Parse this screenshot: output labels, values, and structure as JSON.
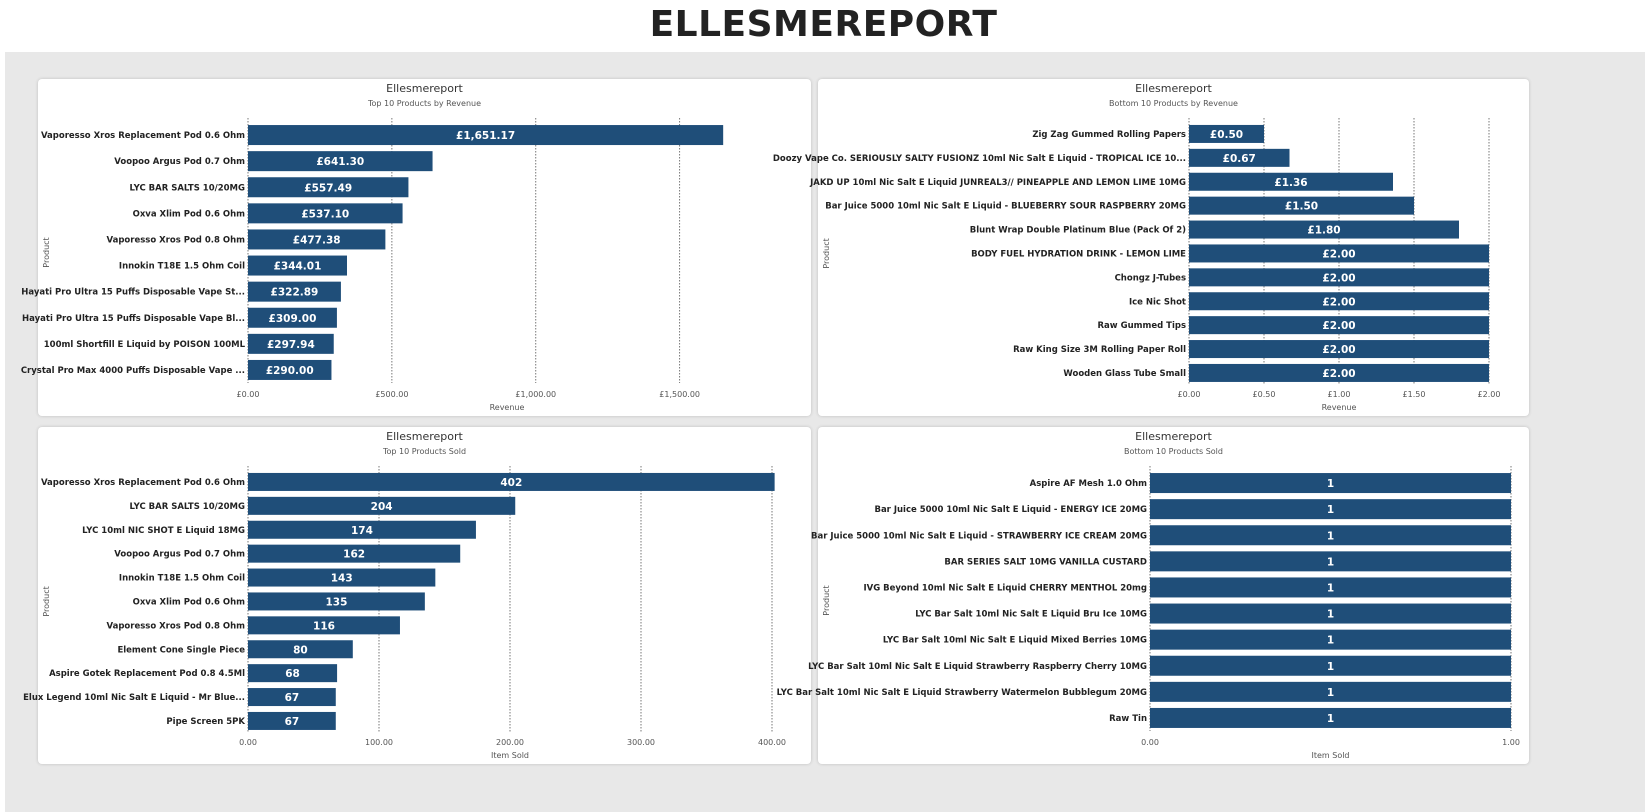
{
  "page": {
    "title": "ELLESMEREPORT"
  },
  "colors": {
    "bar": "#1f4e79",
    "bar_label": "#ffffff",
    "grid": "#555555",
    "axis_text": "#555555",
    "category_text": "#222222"
  },
  "chart_data": [
    {
      "type": "bar",
      "orientation": "horizontal",
      "title": "Ellesmereport",
      "subtitle": "Top 10 Products by Revenue",
      "xlabel": "Revenue",
      "ylabel": "Product",
      "xlim": [
        0,
        1800
      ],
      "ticks": [
        0,
        500,
        1000,
        1500
      ],
      "tick_labels": [
        "£0.00",
        "£500.00",
        "£1,000.00",
        "£1,500.00"
      ],
      "grid": true,
      "categories": [
        "Vaporesso Xros Replacement Pod 0.6 Ohm",
        "Voopoo Argus Pod 0.7 Ohm",
        "LYC BAR SALTS 10/20MG",
        "Oxva Xlim Pod 0.6 Ohm",
        "Vaporesso Xros Pod 0.8 Ohm",
        "Innokin T18E 1.5 Ohm Coil",
        "Hayati Pro Ultra 15 Puffs Disposable Vape  St...",
        "Hayati Pro Ultra 15 Puffs Disposable Vape  Bl...",
        "100ml Shortfill E Liquid by POISON 100ML",
        "Crystal Pro Max 4000 Puffs Disposable Vape ..."
      ],
      "values": [
        1651.17,
        641.3,
        557.49,
        537.1,
        477.38,
        344.01,
        322.89,
        309.0,
        297.94,
        290.0
      ],
      "value_labels": [
        "£1,651.17",
        "£641.30",
        "£557.49",
        "£537.10",
        "£477.38",
        "£344.01",
        "£322.89",
        "£309.00",
        "£297.94",
        "£290.00"
      ]
    },
    {
      "type": "bar",
      "orientation": "horizontal",
      "title": "Ellesmereport",
      "subtitle": "Bottom 10 Products by Revenue",
      "xlabel": "Revenue",
      "ylabel": "Product",
      "xlim": [
        0,
        2.0
      ],
      "ticks": [
        0,
        0.5,
        1.0,
        1.5,
        2.0
      ],
      "tick_labels": [
        "£0.00",
        "£0.50",
        "£1.00",
        "£1.50",
        "£2.00"
      ],
      "grid": true,
      "categories": [
        "Zig Zag Gummed Rolling Papers",
        "Doozy Vape Co. SERIOUSLY SALTY FUSIONZ 10ml Nic Salt E Liquid - TROPICAL ICE 10...",
        "JAKD UP 10ml Nic Salt E Liquid JUNREAL3// PINEAPPLE AND LEMON LIME 10MG",
        "Bar Juice 5000 10ml Nic Salt E Liquid - BLUEBERRY SOUR RASPBERRY 20MG",
        "Blunt Wrap Double Platinum Blue (Pack Of 2)",
        "BODY FUEL HYDRATION DRINK - LEMON LIME",
        "Chongz J-Tubes",
        "Ice Nic Shot",
        "Raw Gummed Tips",
        "Raw King Size 3M Rolling Paper Roll",
        "Wooden Glass Tube Small"
      ],
      "values": [
        0.5,
        0.67,
        1.36,
        1.5,
        1.8,
        2.0,
        2.0,
        2.0,
        2.0,
        2.0,
        2.0
      ],
      "value_labels": [
        "£0.50",
        "£0.67",
        "£1.36",
        "£1.50",
        "£1.80",
        "£2.00",
        "£2.00",
        "£2.00",
        "£2.00",
        "£2.00",
        "£2.00"
      ]
    },
    {
      "type": "bar",
      "orientation": "horizontal",
      "title": "Ellesmereport",
      "subtitle": "Top 10 Products Sold",
      "xlabel": "Item Sold",
      "ylabel": "Product",
      "xlim": [
        0,
        400
      ],
      "ticks": [
        0,
        100,
        200,
        300,
        400
      ],
      "tick_labels": [
        "0.00",
        "100.00",
        "200.00",
        "300.00",
        "400.00"
      ],
      "grid": true,
      "categories": [
        "Vaporesso Xros Replacement Pod 0.6 Ohm",
        "LYC BAR SALTS 10/20MG",
        "LYC 10ml NIC SHOT E Liquid 18MG",
        "Voopoo Argus Pod 0.7 Ohm",
        "Innokin T18E 1.5 Ohm Coil",
        "Oxva Xlim Pod 0.6 Ohm",
        "Vaporesso Xros Pod 0.8 Ohm",
        "Element Cone Single Piece",
        "Aspire Gotek Replacement Pod 0.8 4.5Ml",
        "Elux Legend 10ml Nic Salt E Liquid - Mr Blue...",
        "Pipe Screen 5PK"
      ],
      "values": [
        402,
        204,
        174,
        162,
        143,
        135,
        116,
        80,
        68,
        67,
        67
      ],
      "value_labels": [
        "402",
        "204",
        "174",
        "162",
        "143",
        "135",
        "116",
        "80",
        "68",
        "67",
        "67"
      ]
    },
    {
      "type": "bar",
      "orientation": "horizontal",
      "title": "Ellesmereport",
      "subtitle": "Bottom 10 Products Sold",
      "xlabel": "Item Sold",
      "ylabel": "Product",
      "xlim": [
        0,
        1
      ],
      "ticks": [
        0,
        1
      ],
      "tick_labels": [
        "0.00",
        "1.00"
      ],
      "grid": true,
      "categories": [
        "Aspire AF Mesh 1.0 Ohm",
        "Bar Juice 5000 10ml Nic Salt E Liquid - ENERGY ICE 20MG",
        "Bar Juice 5000 10ml Nic Salt E Liquid - STRAWBERRY ICE CREAM 20MG",
        "BAR SERIES SALT 10MG VANILLA CUSTARD",
        "IVG Beyond 10ml Nic Salt E Liquid CHERRY MENTHOL 20mg",
        "LYC Bar Salt 10ml Nic Salt E Liquid Bru Ice 10MG",
        "LYC Bar Salt 10ml Nic Salt E Liquid Mixed Berries 10MG",
        "LYC Bar Salt 10ml Nic Salt E Liquid Strawberry Raspberry Cherry 10MG",
        "LYC Bar Salt 10ml Nic Salt E Liquid Strawberry Watermelon Bubblegum 20MG",
        "Raw Tin"
      ],
      "values": [
        1,
        1,
        1,
        1,
        1,
        1,
        1,
        1,
        1,
        1
      ],
      "value_labels": [
        "1",
        "1",
        "1",
        "1",
        "1",
        "1",
        "1",
        "1",
        "1",
        "1"
      ]
    }
  ]
}
